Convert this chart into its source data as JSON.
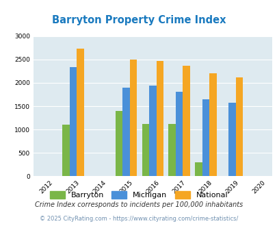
{
  "title": "Barryton Property Crime Index",
  "title_color": "#1a7abf",
  "years": [
    2013,
    2015,
    2016,
    2017,
    2018,
    2019
  ],
  "barryton": [
    1100,
    1400,
    1120,
    1120,
    300,
    0
  ],
  "michigan": [
    2340,
    1900,
    1940,
    1810,
    1650,
    1580
  ],
  "national": [
    2740,
    2500,
    2470,
    2370,
    2200,
    2110
  ],
  "bar_color_barryton": "#7ab648",
  "bar_color_michigan": "#4a90d9",
  "bar_color_national": "#f5a623",
  "xlim": [
    2011.5,
    2020.5
  ],
  "ylim": [
    0,
    3000
  ],
  "yticks": [
    0,
    500,
    1000,
    1500,
    2000,
    2500,
    3000
  ],
  "xticks": [
    2012,
    2013,
    2014,
    2015,
    2016,
    2017,
    2018,
    2019,
    2020
  ],
  "background_color": "#deeaf0",
  "grid_color": "#ffffff",
  "footnote1": "Crime Index corresponds to incidents per 100,000 inhabitants",
  "footnote2": "© 2025 CityRating.com - https://www.cityrating.com/crime-statistics/",
  "legend_labels": [
    "Barryton",
    "Michigan",
    "National"
  ],
  "bar_width": 0.27
}
